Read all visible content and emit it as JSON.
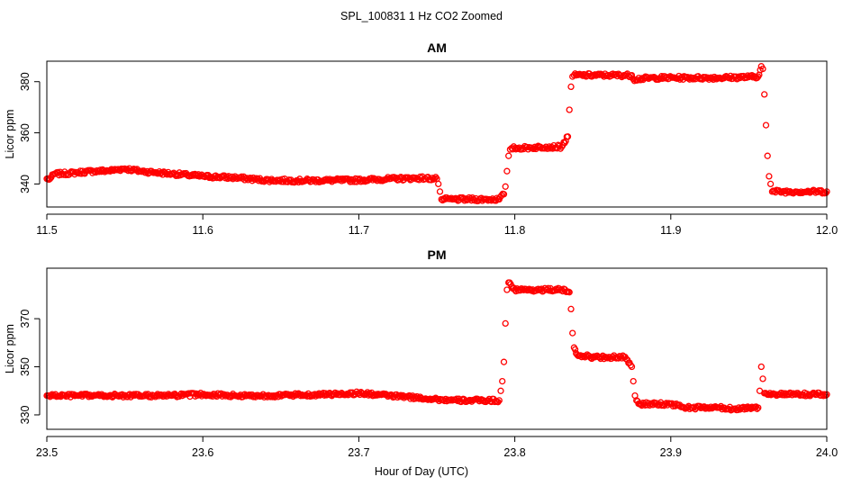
{
  "figure": {
    "title": "SPL_100831  1 Hz CO2 Zoomed",
    "xlabel": "Hour of Day (UTC)"
  },
  "chart_data": [
    {
      "type": "scatter",
      "title": "AM",
      "xlabel": "Hour of Day (UTC)",
      "ylabel": "Licor ppm",
      "xlim": [
        11.5,
        12.0
      ],
      "ylim": [
        331,
        388
      ],
      "xticks": [
        "11.5",
        "11.6",
        "11.7",
        "11.8",
        "11.9",
        "12.0"
      ],
      "yticks": [
        "340",
        "360",
        "380"
      ],
      "color": "#ff0000",
      "series": [
        {
          "name": "CO2",
          "x": [
            11.5,
            11.502,
            11.505,
            11.51,
            11.52,
            11.53,
            11.54,
            11.55,
            11.555,
            11.56,
            11.57,
            11.58,
            11.59,
            11.6,
            11.62,
            11.64,
            11.66,
            11.68,
            11.7,
            11.72,
            11.74,
            11.75,
            11.751,
            11.752,
            11.753,
            11.755,
            11.76,
            11.77,
            11.78,
            11.79,
            11.793,
            11.794,
            11.795,
            11.796,
            11.797,
            11.798,
            11.8,
            11.81,
            11.82,
            11.83,
            11.834,
            11.835,
            11.836,
            11.837,
            11.838,
            11.845,
            11.86,
            11.875,
            11.876,
            11.89,
            11.91,
            11.93,
            11.95,
            11.956,
            11.958,
            11.959,
            11.96,
            11.961,
            11.962,
            11.963,
            11.964,
            11.965,
            11.97,
            11.98,
            11.99,
            12.0
          ],
          "y": [
            342,
            342,
            344,
            344,
            344.5,
            345,
            345.2,
            346,
            345.5,
            345,
            344.5,
            344,
            343.5,
            343,
            342.5,
            341.5,
            341.3,
            341.4,
            341.5,
            342,
            342.3,
            342,
            340,
            337,
            334,
            334,
            334,
            334,
            334,
            334,
            336,
            339,
            345,
            351,
            353.5,
            354,
            354,
            354.2,
            354.5,
            354.5,
            358.5,
            369,
            378,
            382,
            382.5,
            382.5,
            382.5,
            382.5,
            381,
            381.5,
            381.5,
            381.5,
            381.8,
            382,
            386,
            385,
            375,
            363,
            351,
            343,
            340,
            337,
            337,
            337,
            337,
            337
          ]
        }
      ]
    },
    {
      "type": "scatter",
      "title": "PM",
      "xlabel": "Hour of Day (UTC)",
      "ylabel": "Licor ppm",
      "xlim": [
        23.5,
        24.0
      ],
      "ylim": [
        324,
        391
      ],
      "xticks": [
        "23.5",
        "23.6",
        "23.7",
        "23.8",
        "23.9",
        "24.0"
      ],
      "yticks": [
        "330",
        "350",
        "370"
      ],
      "color": "#ff0000",
      "series": [
        {
          "name": "CO2",
          "x": [
            23.5,
            23.52,
            23.54,
            23.56,
            23.58,
            23.6,
            23.62,
            23.64,
            23.66,
            23.68,
            23.7,
            23.72,
            23.74,
            23.75,
            23.76,
            23.78,
            23.79,
            23.791,
            23.792,
            23.793,
            23.794,
            23.795,
            23.796,
            23.8,
            23.81,
            23.82,
            23.83,
            23.835,
            23.836,
            23.837,
            23.838,
            23.84,
            23.85,
            23.86,
            23.87,
            23.875,
            23.876,
            23.877,
            23.878,
            23.88,
            23.89,
            23.9,
            23.91,
            23.92,
            23.93,
            23.94,
            23.95,
            23.956,
            23.957,
            23.958,
            23.959,
            23.96,
            23.97,
            23.98,
            23.99,
            24.0
          ],
          "y": [
            338,
            338,
            338,
            338,
            338,
            338.5,
            338,
            338,
            338.2,
            338.5,
            339,
            338,
            337,
            336.5,
            336,
            336,
            336,
            340,
            344,
            352,
            368,
            382,
            385,
            382,
            382,
            382,
            382,
            381,
            374,
            364,
            358,
            355,
            354,
            354,
            354,
            350,
            344,
            338,
            336,
            334.5,
            334.5,
            334.5,
            333,
            333,
            333,
            332.5,
            333,
            333,
            340,
            350,
            345,
            339,
            338.5,
            338.5,
            338.5,
            338.5
          ]
        }
      ]
    }
  ]
}
